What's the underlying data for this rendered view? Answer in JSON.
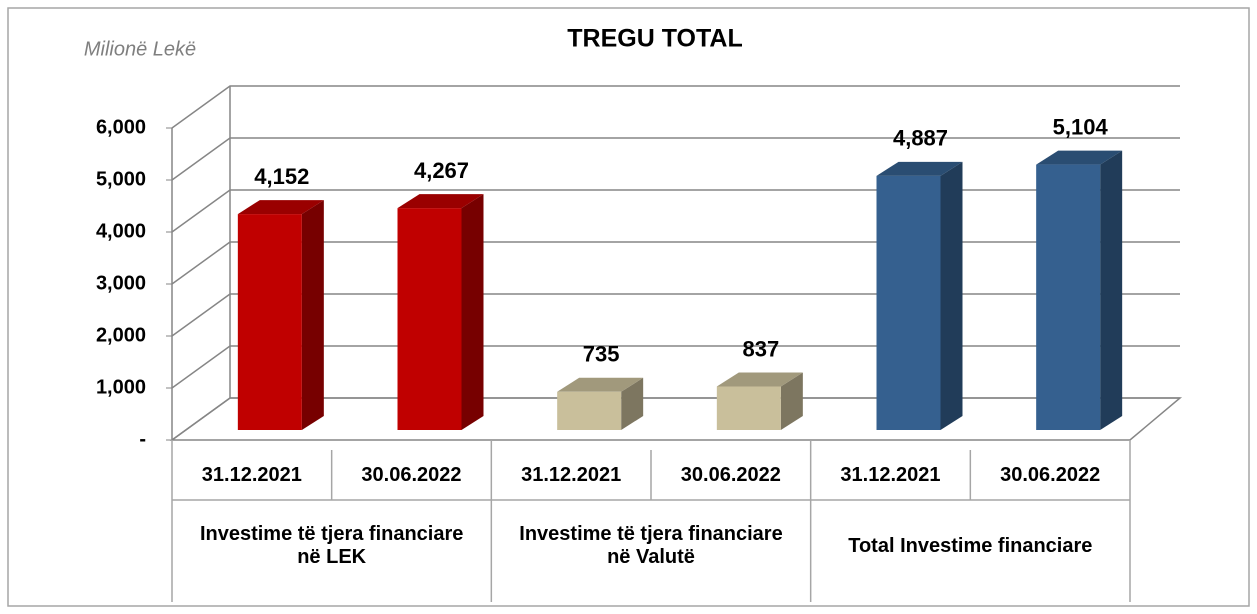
{
  "chart_data": {
    "type": "bar3d",
    "title": "TREGU TOTAL",
    "y_label": "Milionë Lekë",
    "ylim": [
      0,
      6000
    ],
    "yticks": [
      {
        "value": 0,
        "label": "-"
      },
      {
        "value": 1000,
        "label": "1,000"
      },
      {
        "value": 2000,
        "label": "2,000"
      },
      {
        "value": 3000,
        "label": "3,000"
      },
      {
        "value": 4000,
        "label": "4,000"
      },
      {
        "value": 5000,
        "label": "5,000"
      },
      {
        "value": 6000,
        "label": "6,000"
      }
    ],
    "grid": true,
    "groups": [
      {
        "name": "Investime të tjera financiare në LEK",
        "color": "#c00000",
        "categories": [
          "31.12.2021",
          "30.06.2022"
        ],
        "values": [
          4152,
          4267
        ],
        "value_labels": [
          "4,152",
          "4,267"
        ]
      },
      {
        "name": "Investime të tjera financiare në Valutë",
        "color": "#c9bf9b",
        "categories": [
          "31.12.2021",
          "30.06.2022"
        ],
        "values": [
          735,
          837
        ],
        "value_labels": [
          "735",
          "837"
        ]
      },
      {
        "name": "Total Investime financiare",
        "color": "#35608f",
        "categories": [
          "31.12.2021",
          "30.06.2022"
        ],
        "values": [
          4887,
          5104
        ],
        "value_labels": [
          "4,887",
          "5,104"
        ]
      }
    ]
  }
}
